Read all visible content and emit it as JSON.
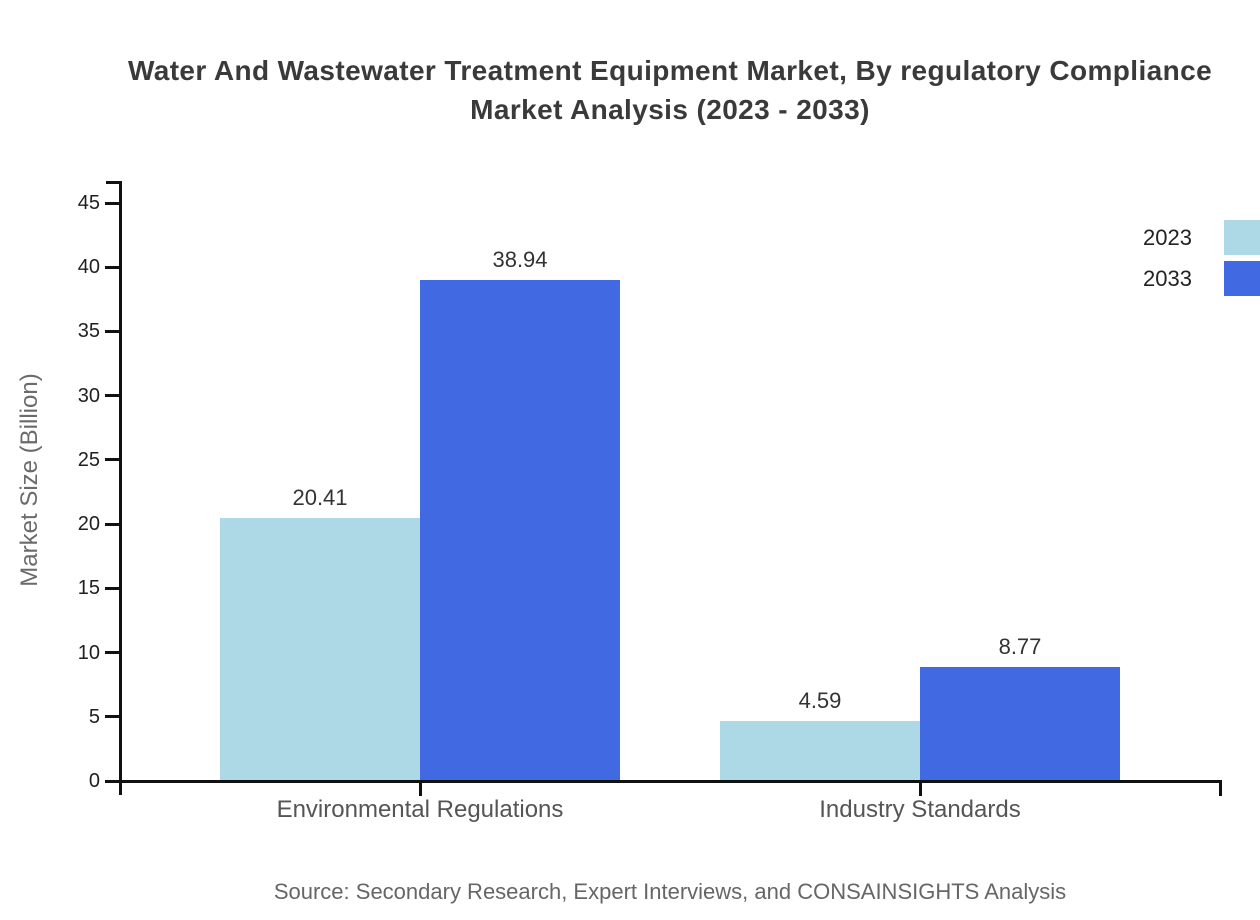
{
  "title": {
    "line1": "Water And Wastewater Treatment Equipment Market, By regulatory Compliance",
    "line2": "Market Analysis (2023 - 2033)"
  },
  "source": "Source: Secondary Research, Expert Interviews, and CONSAINSIGHTS Analysis",
  "chart_data": {
    "type": "bar",
    "categories": [
      "Environmental Regulations",
      "Industry Standards"
    ],
    "series": [
      {
        "name": "2023",
        "values": [
          20.41,
          4.59
        ],
        "color": "#ADD8E6"
      },
      {
        "name": "2033",
        "values": [
          38.94,
          8.77
        ],
        "color": "#4169E1"
      }
    ],
    "value_labels": [
      "20.41",
      "38.94",
      "4.59",
      "8.77"
    ],
    "title": "Water And Wastewater Treatment Equipment Market, By regulatory Compliance Market Analysis (2023 - 2033)",
    "xlabel": "",
    "ylabel": "Market Size (Billion)",
    "ylim": [
      0,
      45
    ],
    "yticks": [
      0,
      5,
      10,
      15,
      20,
      25,
      30,
      35,
      40,
      45
    ],
    "grid": false,
    "legend_position": "top-right"
  },
  "colors": {
    "axis": "#111111",
    "title_text": "#3a3a3a",
    "tick_label": "#1f1f1f",
    "category_label": "#555555",
    "axis_title": "#6b6b6b",
    "source_text": "#666666",
    "series_2023": "#ADD8E6",
    "series_2033": "#4169E1"
  }
}
